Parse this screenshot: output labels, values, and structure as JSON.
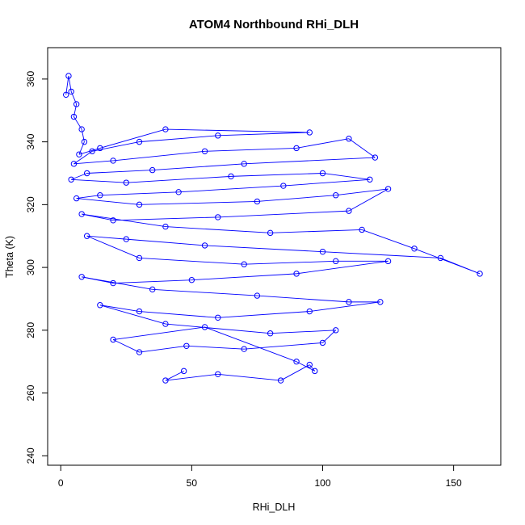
{
  "chart_data": {
    "type": "line",
    "title": "ATOM4 Northbound RHi_DLH",
    "xlabel": "RHi_DLH",
    "ylabel": "Theta (K)",
    "xlim": [
      -5,
      168
    ],
    "ylim": [
      237,
      370
    ],
    "xticks": [
      0,
      50,
      100,
      150
    ],
    "yticks": [
      240,
      260,
      280,
      300,
      320,
      340,
      360
    ],
    "series": [
      {
        "color": "#0000ff",
        "marker": "open-circle",
        "points": [
          [
            2,
            355
          ],
          [
            3,
            361
          ],
          [
            4,
            356
          ],
          [
            6,
            352
          ],
          [
            5,
            348
          ],
          [
            8,
            344
          ],
          [
            9,
            340
          ],
          [
            7,
            336
          ],
          [
            15,
            338
          ],
          [
            40,
            344
          ],
          [
            95,
            343
          ],
          [
            60,
            342
          ],
          [
            30,
            340
          ],
          [
            12,
            337
          ],
          [
            5,
            333
          ],
          [
            20,
            334
          ],
          [
            55,
            337
          ],
          [
            90,
            338
          ],
          [
            110,
            341
          ],
          [
            120,
            335
          ],
          [
            70,
            333
          ],
          [
            35,
            331
          ],
          [
            10,
            330
          ],
          [
            4,
            328
          ],
          [
            25,
            327
          ],
          [
            65,
            329
          ],
          [
            100,
            330
          ],
          [
            118,
            328
          ],
          [
            85,
            326
          ],
          [
            45,
            324
          ],
          [
            15,
            323
          ],
          [
            6,
            322
          ],
          [
            30,
            320
          ],
          [
            75,
            321
          ],
          [
            105,
            323
          ],
          [
            125,
            325
          ],
          [
            110,
            318
          ],
          [
            60,
            316
          ],
          [
            20,
            315
          ],
          [
            8,
            317
          ],
          [
            40,
            313
          ],
          [
            80,
            311
          ],
          [
            115,
            312
          ],
          [
            135,
            306
          ],
          [
            160,
            298
          ],
          [
            145,
            303
          ],
          [
            100,
            305
          ],
          [
            55,
            307
          ],
          [
            25,
            309
          ],
          [
            10,
            310
          ],
          [
            30,
            303
          ],
          [
            70,
            301
          ],
          [
            105,
            302
          ],
          [
            125,
            302
          ],
          [
            90,
            298
          ],
          [
            50,
            296
          ],
          [
            20,
            295
          ],
          [
            8,
            297
          ],
          [
            35,
            293
          ],
          [
            75,
            291
          ],
          [
            110,
            289
          ],
          [
            122,
            289
          ],
          [
            95,
            286
          ],
          [
            60,
            284
          ],
          [
            30,
            286
          ],
          [
            15,
            288
          ],
          [
            40,
            282
          ],
          [
            80,
            279
          ],
          [
            105,
            280
          ],
          [
            100,
            276
          ],
          [
            70,
            274
          ],
          [
            48,
            275
          ],
          [
            30,
            273
          ],
          [
            20,
            277
          ],
          [
            55,
            281
          ],
          [
            90,
            270
          ],
          [
            97,
            267
          ],
          [
            95,
            269
          ],
          [
            84,
            264
          ],
          [
            60,
            266
          ],
          [
            40,
            264
          ],
          [
            47,
            267
          ]
        ]
      }
    ]
  }
}
